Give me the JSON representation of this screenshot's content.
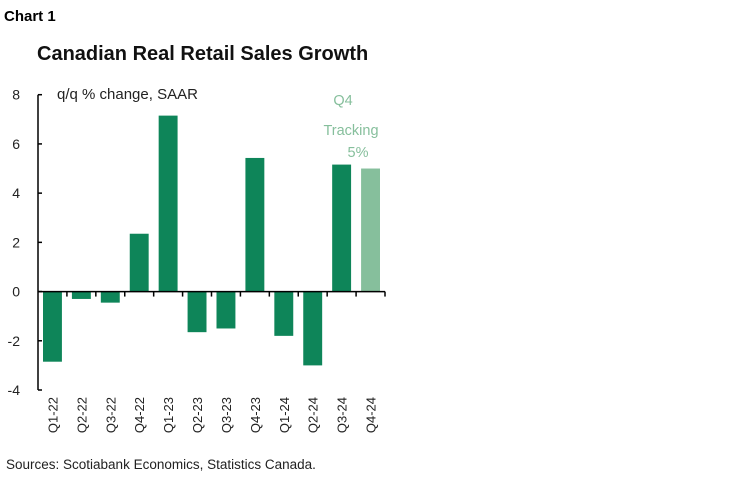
{
  "chart_label": "Chart 1",
  "chart_data": {
    "type": "bar",
    "title": "Canadian Real Retail Sales Growth",
    "ylabel": "q/q % change, SAAR",
    "xlabel": "",
    "categories": [
      "Q1-22",
      "Q2-22",
      "Q3-22",
      "Q4-22",
      "Q1-23",
      "Q2-23",
      "Q3-23",
      "Q4-23",
      "Q1-24",
      "Q2-24",
      "Q3-24",
      "Q4-24"
    ],
    "values": [
      -2.85,
      -0.3,
      -0.45,
      2.35,
      7.15,
      -1.65,
      -1.5,
      5.43,
      -1.8,
      -3.0,
      5.16,
      5.0
    ],
    "ylim": [
      -4,
      8
    ],
    "yticks": [
      "-4",
      "-2",
      "0",
      "2",
      "4",
      "6",
      "8"
    ],
    "grid": false,
    "colors": {
      "actual": "#0e8559",
      "tracking": "#86bf9c"
    },
    "annotation": {
      "lines": [
        "Q4",
        "Tracking",
        "5%"
      ]
    }
  },
  "source": "Sources: Scotiabank Economics, Statistics Canada."
}
